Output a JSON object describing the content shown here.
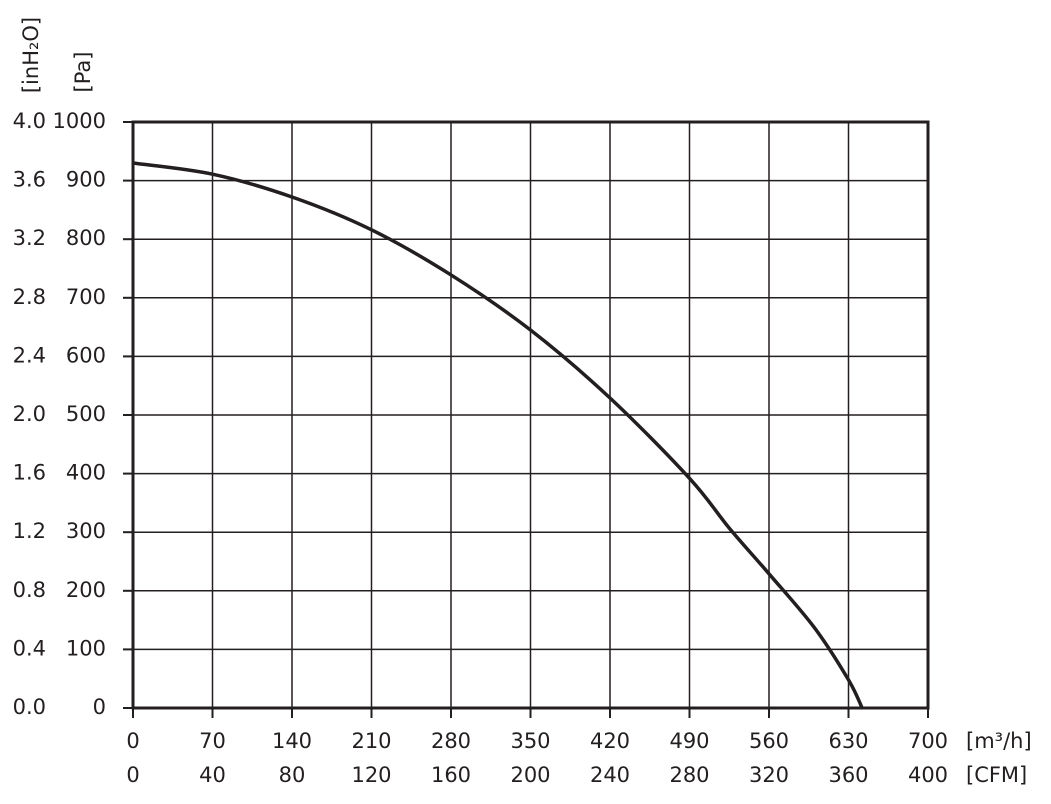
{
  "chart_data": {
    "type": "line",
    "x": [
      0,
      70,
      140,
      210,
      280,
      350,
      420,
      490,
      525,
      560,
      600,
      630,
      642
    ],
    "values": [
      930,
      911,
      872,
      816,
      739,
      645,
      529,
      392,
      307,
      229,
      137,
      48,
      0
    ],
    "color": "#231f20",
    "xlim": [
      0,
      700
    ],
    "xticks": [
      0,
      70,
      140,
      210,
      280,
      350,
      420,
      490,
      560,
      630,
      700
    ],
    "x_label": "[m³/h]",
    "x2lim": [
      0,
      400
    ],
    "x2ticks": [
      0,
      40,
      80,
      120,
      160,
      200,
      240,
      280,
      320,
      360,
      400
    ],
    "x2_label": "[CFM]",
    "ylim": [
      0,
      1000
    ],
    "yticks": [
      0,
      100,
      200,
      300,
      400,
      500,
      600,
      700,
      800,
      900,
      1000
    ],
    "y_label": "[Pa]",
    "y2lim": [
      0,
      4
    ],
    "y2ticks": [
      {
        "value": 0,
        "label": "0.0"
      },
      0.4,
      0.8,
      1.2,
      1.6,
      {
        "value": 2,
        "label": "2.0"
      },
      2.4,
      2.8,
      3.2,
      3.6,
      {
        "value": 4,
        "label": "4.0"
      }
    ],
    "y2_label": "[inH₂O]",
    "grid": true
  }
}
